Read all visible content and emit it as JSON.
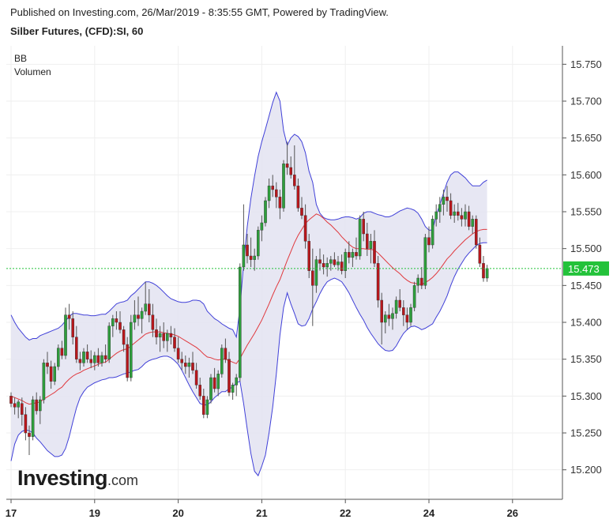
{
  "header": {
    "published": "Published on Investing.com, 26/Mar/2019 - 8:35:55 GMT, Powered by TradingView.",
    "symbol": "Silber Futures, (CFD):SI, 60"
  },
  "indicators": [
    "BB",
    "Volumen"
  ],
  "logo": {
    "brand": "Investing",
    "suffix": ".com"
  },
  "colors": {
    "up": "#2e9e3c",
    "down": "#b8171c",
    "band": "#4040d8",
    "band_fill": "#e3e3f1",
    "basis": "#e0393e",
    "last_price": "#23c23a"
  },
  "chart_data": {
    "type": "candlestick",
    "title": "Silber Futures, (CFD):SI, 60",
    "y_ticks": [
      "15.750",
      "15.700",
      "15.650",
      "15.600",
      "15.550",
      "15.500",
      "15.450",
      "15.400",
      "15.350",
      "15.300",
      "15.250",
      "15.200"
    ],
    "ylim": [
      15.16,
      15.775
    ],
    "x_ticks": [
      {
        "label": "17",
        "index": 0
      },
      {
        "label": "19",
        "index": 23
      },
      {
        "label": "20",
        "index": 46
      },
      {
        "label": "21",
        "index": 69
      },
      {
        "label": "22",
        "index": 92
      },
      {
        "label": "24",
        "index": 115
      },
      {
        "label": "26",
        "index": 138
      }
    ],
    "last_price": {
      "value": 15.473,
      "label": "15.473"
    },
    "grid": true,
    "candles": [
      [
        15.3,
        15.305,
        15.285,
        15.29
      ],
      [
        15.29,
        15.298,
        15.275,
        15.285
      ],
      [
        15.285,
        15.295,
        15.27,
        15.292
      ],
      [
        15.29,
        15.298,
        15.26,
        15.275
      ],
      [
        15.275,
        15.285,
        15.24,
        15.25
      ],
      [
        15.25,
        15.26,
        15.22,
        15.245
      ],
      [
        15.245,
        15.3,
        15.24,
        15.295
      ],
      [
        15.295,
        15.305,
        15.275,
        15.28
      ],
      [
        15.28,
        15.3,
        15.262,
        15.295
      ],
      [
        15.295,
        15.35,
        15.29,
        15.345
      ],
      [
        15.345,
        15.36,
        15.33,
        15.34
      ],
      [
        15.34,
        15.348,
        15.31,
        15.32
      ],
      [
        15.32,
        15.345,
        15.315,
        15.34
      ],
      [
        15.34,
        15.37,
        15.335,
        15.365
      ],
      [
        15.365,
        15.375,
        15.35,
        15.355
      ],
      [
        15.355,
        15.42,
        15.35,
        15.41
      ],
      [
        15.41,
        15.425,
        15.39,
        15.405
      ],
      [
        15.405,
        15.415,
        15.37,
        15.38
      ],
      [
        15.38,
        15.395,
        15.345,
        15.35
      ],
      [
        15.35,
        15.36,
        15.335,
        15.345
      ],
      [
        15.345,
        15.365,
        15.34,
        15.36
      ],
      [
        15.36,
        15.37,
        15.345,
        15.35
      ],
      [
        15.35,
        15.362,
        15.338,
        15.345
      ],
      [
        15.345,
        15.36,
        15.335,
        15.355
      ],
      [
        15.355,
        15.365,
        15.34,
        15.345
      ],
      [
        15.345,
        15.36,
        15.34,
        15.355
      ],
      [
        15.355,
        15.37,
        15.345,
        15.35
      ],
      [
        15.35,
        15.4,
        15.345,
        15.395
      ],
      [
        15.395,
        15.41,
        15.38,
        15.405
      ],
      [
        15.405,
        15.415,
        15.39,
        15.4
      ],
      [
        15.4,
        15.415,
        15.385,
        15.39
      ],
      [
        15.39,
        15.395,
        15.36,
        15.37
      ],
      [
        15.37,
        15.38,
        15.32,
        15.325
      ],
      [
        15.325,
        15.41,
        15.32,
        15.4
      ],
      [
        15.4,
        15.43,
        15.39,
        15.41
      ],
      [
        15.41,
        15.435,
        15.395,
        15.405
      ],
      [
        15.405,
        15.42,
        15.385,
        15.415
      ],
      [
        15.415,
        15.455,
        15.41,
        15.425
      ],
      [
        15.425,
        15.445,
        15.4,
        15.41
      ],
      [
        15.41,
        15.425,
        15.38,
        15.39
      ],
      [
        15.39,
        15.405,
        15.37,
        15.38
      ],
      [
        15.38,
        15.395,
        15.36,
        15.385
      ],
      [
        15.385,
        15.4,
        15.365,
        15.375
      ],
      [
        15.375,
        15.39,
        15.36,
        15.385
      ],
      [
        15.385,
        15.395,
        15.37,
        15.38
      ],
      [
        15.38,
        15.392,
        15.36,
        15.365
      ],
      [
        15.365,
        15.38,
        15.345,
        15.35
      ],
      [
        15.35,
        15.36,
        15.335,
        15.345
      ],
      [
        15.345,
        15.355,
        15.33,
        15.34
      ],
      [
        15.34,
        15.352,
        15.325,
        15.345
      ],
      [
        15.345,
        15.36,
        15.33,
        15.335
      ],
      [
        15.335,
        15.345,
        15.31,
        15.315
      ],
      [
        15.315,
        15.325,
        15.295,
        15.3
      ],
      [
        15.3,
        15.31,
        15.27,
        15.275
      ],
      [
        15.275,
        15.3,
        15.27,
        15.295
      ],
      [
        15.295,
        15.33,
        15.29,
        15.325
      ],
      [
        15.325,
        15.338,
        15.305,
        15.31
      ],
      [
        15.31,
        15.335,
        15.3,
        15.33
      ],
      [
        15.33,
        15.37,
        15.325,
        15.365
      ],
      [
        15.365,
        15.378,
        15.345,
        15.35
      ],
      [
        15.35,
        15.36,
        15.3,
        15.305
      ],
      [
        15.305,
        15.318,
        15.295,
        15.315
      ],
      [
        15.315,
        15.33,
        15.3,
        15.325
      ],
      [
        15.325,
        15.48,
        15.32,
        15.475
      ],
      [
        15.475,
        15.56,
        15.47,
        15.505
      ],
      [
        15.505,
        15.52,
        15.48,
        15.49
      ],
      [
        15.49,
        15.515,
        15.475,
        15.485
      ],
      [
        15.485,
        15.5,
        15.47,
        15.49
      ],
      [
        15.49,
        15.53,
        15.485,
        15.525
      ],
      [
        15.525,
        15.545,
        15.51,
        15.535
      ],
      [
        15.535,
        15.57,
        15.53,
        15.565
      ],
      [
        15.565,
        15.595,
        15.555,
        15.585
      ],
      [
        15.585,
        15.6,
        15.57,
        15.58
      ],
      [
        15.58,
        15.59,
        15.555,
        15.57
      ],
      [
        15.57,
        15.58,
        15.54,
        15.555
      ],
      [
        15.555,
        15.62,
        15.55,
        15.615
      ],
      [
        15.615,
        15.645,
        15.6,
        15.61
      ],
      [
        15.61,
        15.625,
        15.595,
        15.6
      ],
      [
        15.6,
        15.64,
        15.58,
        15.585
      ],
      [
        15.585,
        15.595,
        15.55,
        15.555
      ],
      [
        15.555,
        15.57,
        15.54,
        15.545
      ],
      [
        15.545,
        15.56,
        15.5,
        15.51
      ],
      [
        15.51,
        15.52,
        15.46,
        15.47
      ],
      [
        15.47,
        15.5,
        15.395,
        15.45
      ],
      [
        15.45,
        15.49,
        15.44,
        15.485
      ],
      [
        15.485,
        15.5,
        15.47,
        15.48
      ],
      [
        15.48,
        15.492,
        15.465,
        15.475
      ],
      [
        15.475,
        15.488,
        15.462,
        15.48
      ],
      [
        15.48,
        15.49,
        15.47,
        15.485
      ],
      [
        15.485,
        15.495,
        15.475,
        15.478
      ],
      [
        15.478,
        15.49,
        15.47,
        15.482
      ],
      [
        15.482,
        15.492,
        15.465,
        15.47
      ],
      [
        15.47,
        15.5,
        15.46,
        15.495
      ],
      [
        15.495,
        15.51,
        15.48,
        15.488
      ],
      [
        15.488,
        15.5,
        15.475,
        15.495
      ],
      [
        15.495,
        15.515,
        15.485,
        15.49
      ],
      [
        15.49,
        15.545,
        15.485,
        15.54
      ],
      [
        15.54,
        15.55,
        15.51,
        15.52
      ],
      [
        15.52,
        15.535,
        15.49,
        15.5
      ],
      [
        15.5,
        15.52,
        15.48,
        15.51
      ],
      [
        15.51,
        15.525,
        15.475,
        15.48
      ],
      [
        15.48,
        15.49,
        15.42,
        15.43
      ],
      [
        15.43,
        15.44,
        15.37,
        15.4
      ],
      [
        15.4,
        15.415,
        15.385,
        15.41
      ],
      [
        15.41,
        15.425,
        15.395,
        15.405
      ],
      [
        15.405,
        15.42,
        15.39,
        15.412
      ],
      [
        15.412,
        15.435,
        15.405,
        15.43
      ],
      [
        15.43,
        15.445,
        15.415,
        15.42
      ],
      [
        15.42,
        15.43,
        15.395,
        15.41
      ],
      [
        15.41,
        15.42,
        15.39,
        15.4
      ],
      [
        15.4,
        15.425,
        15.395,
        15.42
      ],
      [
        15.42,
        15.455,
        15.415,
        15.45
      ],
      [
        15.45,
        15.465,
        15.44,
        15.46
      ],
      [
        15.46,
        15.475,
        15.445,
        15.45
      ],
      [
        15.45,
        15.52,
        15.445,
        15.515
      ],
      [
        15.515,
        15.53,
        15.495,
        15.505
      ],
      [
        15.505,
        15.545,
        15.5,
        15.54
      ],
      [
        15.54,
        15.56,
        15.53,
        15.55
      ],
      [
        15.55,
        15.57,
        15.535,
        15.56
      ],
      [
        15.56,
        15.58,
        15.545,
        15.57
      ],
      [
        15.57,
        15.585,
        15.55,
        15.565
      ],
      [
        15.565,
        15.575,
        15.54,
        15.545
      ],
      [
        15.545,
        15.56,
        15.535,
        15.55
      ],
      [
        15.55,
        15.562,
        15.538,
        15.545
      ],
      [
        15.545,
        15.555,
        15.53,
        15.54
      ],
      [
        15.54,
        15.56,
        15.53,
        15.55
      ],
      [
        15.55,
        15.558,
        15.525,
        15.53
      ],
      [
        15.53,
        15.545,
        15.52,
        15.54
      ],
      [
        15.54,
        15.545,
        15.5,
        15.505
      ],
      [
        15.505,
        15.515,
        15.475,
        15.48
      ],
      [
        15.48,
        15.49,
        15.455,
        15.46
      ],
      [
        15.46,
        15.478,
        15.455,
        15.473
      ]
    ],
    "bb_basis": [
      15.3,
      15.298,
      15.296,
      15.294,
      15.291,
      15.289,
      15.29,
      15.291,
      15.292,
      15.296,
      15.299,
      15.302,
      15.305,
      15.309,
      15.312,
      15.318,
      15.323,
      15.327,
      15.33,
      15.332,
      15.335,
      15.337,
      15.339,
      15.341,
      15.343,
      15.345,
      15.346,
      15.35,
      15.354,
      15.358,
      15.361,
      15.363,
      15.364,
      15.368,
      15.372,
      15.376,
      15.38,
      15.384,
      15.386,
      15.387,
      15.387,
      15.387,
      15.386,
      15.385,
      15.384,
      15.383,
      15.381,
      15.378,
      15.375,
      15.372,
      15.369,
      15.366,
      15.362,
      15.357,
      15.353,
      15.352,
      15.35,
      15.349,
      15.35,
      15.35,
      15.348,
      15.346,
      15.344,
      15.351,
      15.36,
      15.369,
      15.377,
      15.385,
      15.394,
      15.403,
      15.414,
      15.425,
      15.437,
      15.448,
      15.458,
      15.471,
      15.484,
      15.496,
      15.508,
      15.518,
      15.526,
      15.534,
      15.539,
      15.543,
      15.547,
      15.545,
      15.541,
      15.536,
      15.532,
      15.527,
      15.522,
      15.516,
      15.511,
      15.506,
      15.502,
      15.5,
      15.5,
      15.5,
      15.499,
      15.499,
      15.498,
      15.494,
      15.489,
      15.484,
      15.479,
      15.474,
      15.47,
      15.466,
      15.461,
      15.457,
      15.454,
      15.453,
      15.452,
      15.451,
      15.454,
      15.457,
      15.461,
      15.466,
      15.472,
      15.479,
      15.486,
      15.491,
      15.497,
      15.502,
      15.507,
      15.512,
      15.516,
      15.52,
      15.523,
      15.525,
      15.526,
      15.526
    ],
    "bb_upper": [
      15.41,
      15.4,
      15.392,
      15.386,
      15.38,
      15.376,
      15.378,
      15.378,
      15.382,
      15.384,
      15.386,
      15.388,
      15.39,
      15.392,
      15.396,
      15.402,
      15.408,
      15.412,
      15.412,
      15.411,
      15.41,
      15.41,
      15.409,
      15.409,
      15.41,
      15.411,
      15.411,
      15.415,
      15.42,
      15.425,
      15.427,
      15.428,
      15.43,
      15.436,
      15.44,
      15.445,
      15.45,
      15.455,
      15.455,
      15.453,
      15.45,
      15.446,
      15.441,
      15.436,
      15.432,
      15.43,
      15.428,
      15.427,
      15.427,
      15.428,
      15.43,
      15.43,
      15.429,
      15.425,
      15.415,
      15.41,
      15.405,
      15.402,
      15.398,
      15.395,
      15.392,
      15.39,
      15.38,
      15.42,
      15.48,
      15.53,
      15.568,
      15.598,
      15.625,
      15.645,
      15.662,
      15.68,
      15.698,
      15.712,
      15.7,
      15.66,
      15.64,
      15.65,
      15.655,
      15.652,
      15.645,
      15.63,
      15.605,
      15.59,
      15.56,
      15.548,
      15.542,
      15.54,
      15.539,
      15.539,
      15.54,
      15.542,
      15.543,
      15.543,
      15.542,
      15.54,
      15.542,
      15.548,
      15.55,
      15.55,
      15.548,
      15.546,
      15.545,
      15.543,
      15.543,
      15.545,
      15.548,
      15.551,
      15.553,
      15.555,
      15.554,
      15.552,
      15.548,
      15.54,
      15.53,
      15.525,
      15.525,
      15.545,
      15.56,
      15.575,
      15.59,
      15.6,
      15.604,
      15.604,
      15.6,
      15.596,
      15.59,
      15.585,
      15.585,
      15.585,
      15.59,
      15.593
    ],
    "bb_lower": [
      15.212,
      15.235,
      15.247,
      15.252,
      15.254,
      15.253,
      15.25,
      15.243,
      15.238,
      15.232,
      15.226,
      15.222,
      15.218,
      15.218,
      15.22,
      15.229,
      15.245,
      15.265,
      15.284,
      15.298,
      15.306,
      15.312,
      15.315,
      15.318,
      15.32,
      15.322,
      15.323,
      15.325,
      15.325,
      15.326,
      15.328,
      15.33,
      15.331,
      15.333,
      15.335,
      15.336,
      15.34,
      15.345,
      15.348,
      15.35,
      15.351,
      15.353,
      15.354,
      15.354,
      15.352,
      15.348,
      15.343,
      15.335,
      15.325,
      15.315,
      15.306,
      15.298,
      15.29,
      15.288,
      15.288,
      15.292,
      15.298,
      15.302,
      15.306,
      15.306,
      15.31,
      15.312,
      15.318,
      15.32,
      15.29,
      15.255,
      15.222,
      15.198,
      15.192,
      15.205,
      15.22,
      15.25,
      15.285,
      15.33,
      15.383,
      15.42,
      15.44,
      15.425,
      15.412,
      15.398,
      15.395,
      15.396,
      15.405,
      15.418,
      15.428,
      15.439,
      15.448,
      15.455,
      15.458,
      15.46,
      15.458,
      15.455,
      15.448,
      15.44,
      15.43,
      15.42,
      15.411,
      15.403,
      15.393,
      15.385,
      15.378,
      15.371,
      15.366,
      15.362,
      15.361,
      15.362,
      15.368,
      15.377,
      15.385,
      15.39,
      15.394,
      15.395,
      15.393,
      15.39,
      15.392,
      15.395,
      15.398,
      15.407,
      15.415,
      15.425,
      15.436,
      15.45,
      15.462,
      15.472,
      15.48,
      15.488,
      15.494,
      15.499,
      15.504,
      15.507,
      15.508,
      15.508
    ]
  }
}
